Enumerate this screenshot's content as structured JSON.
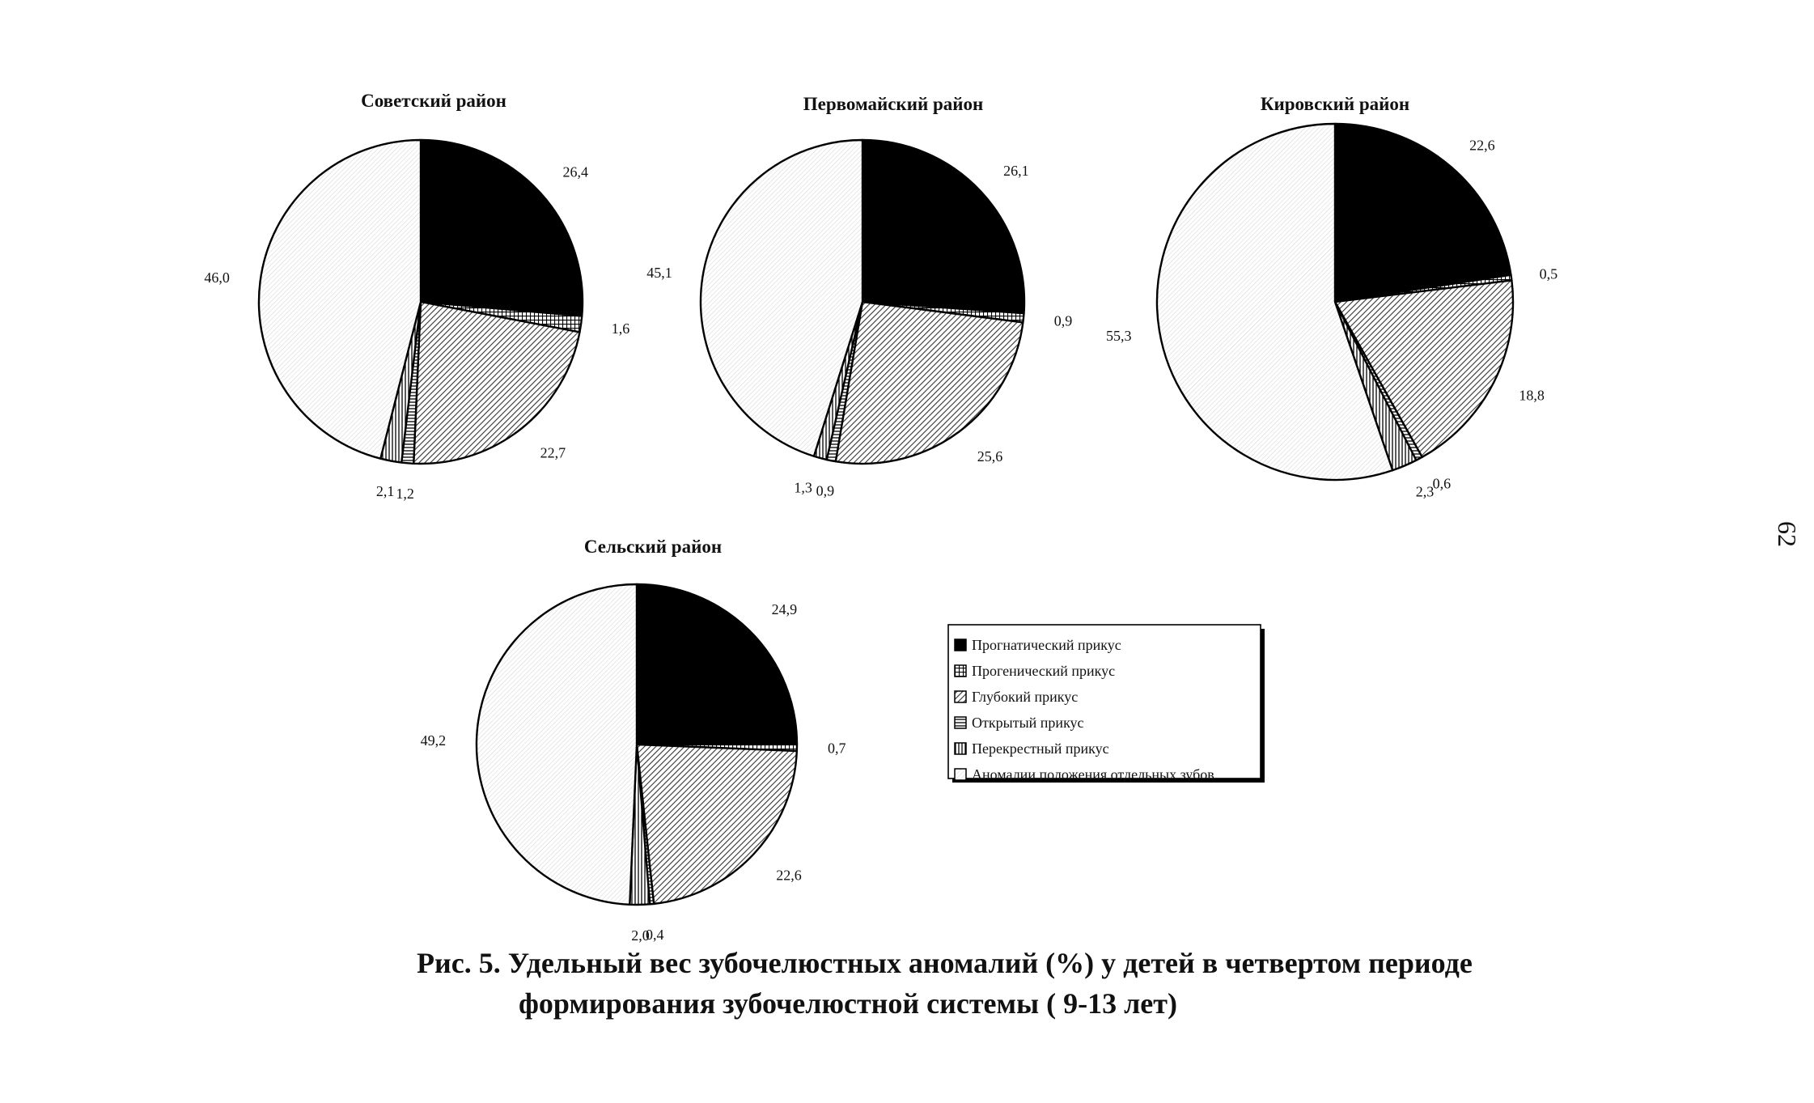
{
  "chart_data": [
    {
      "type": "pie",
      "title": "Советский район",
      "slices": [
        {
          "category": "Прогнатический прикус",
          "value": 26.4,
          "label": "26,4"
        },
        {
          "category": "Прогенический прикус",
          "value": 1.6,
          "label": "1,6"
        },
        {
          "category": "Глубокий прикус",
          "value": 22.7,
          "label": "22,7"
        },
        {
          "category": "Открытый прикус",
          "value": 1.2,
          "label": "1,2"
        },
        {
          "category": "Перекрестный прикус",
          "value": 2.1,
          "label": "2,1"
        },
        {
          "category": "Аномалии положения отдельных зубов",
          "value": 46.0,
          "label": "46,0"
        }
      ]
    },
    {
      "type": "pie",
      "title": "Первомайский район",
      "slices": [
        {
          "category": "Прогнатический прикус",
          "value": 26.1,
          "label": "26,1"
        },
        {
          "category": "Прогенический прикус",
          "value": 0.9,
          "label": "0,9"
        },
        {
          "category": "Глубокий прикус",
          "value": 25.6,
          "label": "25,6"
        },
        {
          "category": "Открытый прикус",
          "value": 0.9,
          "label": "0,9"
        },
        {
          "category": "Перекрестный прикус",
          "value": 1.3,
          "label": "1,3"
        },
        {
          "category": "Аномалии положения отдельных зубов",
          "value": 45.1,
          "label": "45,1"
        }
      ]
    },
    {
      "type": "pie",
      "title": "Кировский район",
      "slices": [
        {
          "category": "Прогнатический прикус",
          "value": 22.6,
          "label": "22,6"
        },
        {
          "category": "Прогенический прикус",
          "value": 0.5,
          "label": "0,5"
        },
        {
          "category": "Глубокий прикус",
          "value": 18.8,
          "label": "18,8"
        },
        {
          "category": "Открытый прикус",
          "value": 0.6,
          "label": "0,6"
        },
        {
          "category": "Перекрестный прикус",
          "value": 2.3,
          "label": "2,3"
        },
        {
          "category": "Аномалии положения отдельных зубов",
          "value": 55.3,
          "label": "55,3"
        }
      ]
    },
    {
      "type": "pie",
      "title": "Сельский район",
      "slices": [
        {
          "category": "Прогнатический прикус",
          "value": 24.9,
          "label": "24,9"
        },
        {
          "category": "Прогенический прикус",
          "value": 0.7,
          "label": "0,7"
        },
        {
          "category": "Глубокий прикус",
          "value": 22.6,
          "label": "22,6"
        },
        {
          "category": "Открытый прикус",
          "value": 0.4,
          "label": "0,4"
        },
        {
          "category": "Перекрестный прикус",
          "value": 2.0,
          "label": "2,0"
        },
        {
          "category": "Аномалии положения отдельных зубов",
          "value": 49.2,
          "label": "49,2"
        }
      ]
    }
  ],
  "legend": {
    "items": [
      {
        "label": "Прогнатический прикус",
        "pattern": "solid-black"
      },
      {
        "label": "Прогенический прикус",
        "pattern": "grid"
      },
      {
        "label": "Глубокий прикус",
        "pattern": "diagonal-hatch"
      },
      {
        "label": "Открытый прикус",
        "pattern": "horizontal-lines"
      },
      {
        "label": "Перекрестный прикус",
        "pattern": "vertical-lines"
      },
      {
        "label": "Аномалии положения отдельных зубов",
        "pattern": "light-diagonal"
      }
    ]
  },
  "caption": {
    "line1": "Рис. 5. Удельный вес зубочелюстных аномалий (%)  у детей в четвертом периоде",
    "line2": "формирования зубочелюстной системы ( 9-13 лет)"
  },
  "page_number": "62"
}
